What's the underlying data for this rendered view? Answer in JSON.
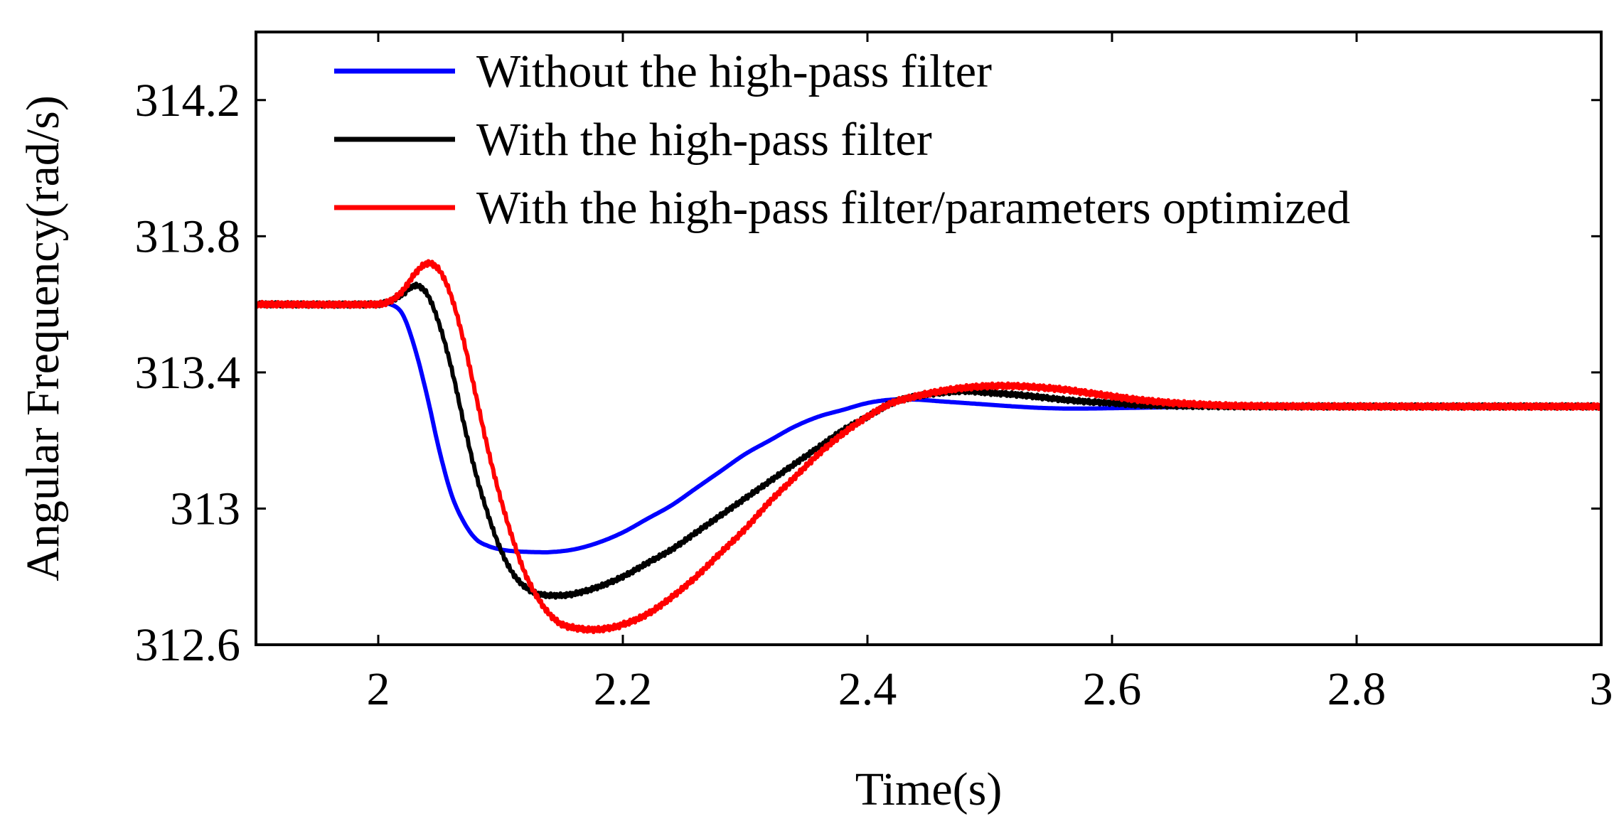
{
  "chart_data": {
    "type": "line",
    "title": "",
    "xlabel": "Time(s)",
    "ylabel": "Angular Frequency(rad/s)",
    "xlim": [
      1.9,
      3.0
    ],
    "ylim": [
      312.6,
      314.4
    ],
    "xticks": [
      2,
      2.2,
      2.4,
      2.6,
      2.8,
      3
    ],
    "xtick_labels": [
      "2",
      "2.2",
      "2.4",
      "2.6",
      "2.8",
      "3"
    ],
    "yticks": [
      312.6,
      313,
      313.4,
      313.8,
      314.2
    ],
    "ytick_labels": [
      "312.6",
      "313",
      "313.4",
      "313.8",
      "314.2"
    ],
    "grid": false,
    "legend_position": "top",
    "series": [
      {
        "name": "Without the high-pass filter",
        "color": "#0000ff",
        "ripple": 0,
        "x": [
          1.9,
          2.0,
          2.01,
          2.02,
          2.03,
          2.04,
          2.05,
          2.06,
          2.07,
          2.08,
          2.09,
          2.1,
          2.11,
          2.12,
          2.13,
          2.14,
          2.16,
          2.18,
          2.2,
          2.22,
          2.24,
          2.26,
          2.28,
          2.3,
          2.32,
          2.34,
          2.36,
          2.38,
          2.4,
          2.42,
          2.44,
          2.46,
          2.48,
          2.5,
          2.52,
          2.54,
          2.56,
          2.58,
          2.6,
          2.65,
          2.7,
          2.8,
          3.0
        ],
        "y": [
          313.6,
          313.6,
          313.6,
          313.57,
          313.47,
          313.33,
          313.17,
          313.04,
          312.96,
          312.91,
          312.89,
          312.88,
          312.875,
          312.873,
          312.872,
          312.872,
          312.88,
          312.9,
          312.93,
          312.97,
          313.01,
          313.06,
          313.11,
          313.16,
          313.2,
          313.24,
          313.27,
          313.29,
          313.31,
          313.32,
          313.32,
          313.315,
          313.31,
          313.305,
          313.3,
          313.296,
          313.294,
          313.294,
          313.295,
          313.298,
          313.3,
          313.3,
          313.3
        ]
      },
      {
        "name": "With the high-pass filter",
        "color": "#000000",
        "ripple": 0.006,
        "x": [
          1.9,
          2.0,
          2.01,
          2.02,
          2.03,
          2.04,
          2.05,
          2.06,
          2.07,
          2.08,
          2.09,
          2.1,
          2.11,
          2.12,
          2.13,
          2.14,
          2.15,
          2.16,
          2.18,
          2.2,
          2.22,
          2.24,
          2.26,
          2.28,
          2.3,
          2.32,
          2.34,
          2.36,
          2.38,
          2.4,
          2.42,
          2.44,
          2.46,
          2.48,
          2.5,
          2.52,
          2.54,
          2.56,
          2.58,
          2.6,
          2.62,
          2.65,
          2.7,
          2.8,
          3.0
        ],
        "y": [
          313.6,
          313.6,
          313.61,
          313.63,
          313.655,
          313.63,
          313.54,
          313.41,
          313.25,
          313.1,
          312.98,
          312.88,
          312.81,
          312.77,
          312.75,
          312.745,
          312.745,
          312.75,
          312.77,
          312.8,
          312.84,
          312.88,
          312.93,
          312.98,
          313.03,
          313.08,
          313.13,
          313.18,
          313.23,
          313.27,
          313.31,
          313.33,
          313.34,
          313.345,
          313.34,
          313.335,
          313.328,
          313.32,
          313.314,
          313.31,
          313.305,
          313.302,
          313.3,
          313.3,
          313.3
        ]
      },
      {
        "name": "With the high-pass filter/parameters optimized",
        "color": "#ff0000",
        "ripple": 0.007,
        "x": [
          1.9,
          2.0,
          2.01,
          2.02,
          2.03,
          2.04,
          2.05,
          2.06,
          2.07,
          2.08,
          2.09,
          2.1,
          2.11,
          2.12,
          2.13,
          2.14,
          2.15,
          2.16,
          2.17,
          2.18,
          2.19,
          2.2,
          2.22,
          2.24,
          2.26,
          2.28,
          2.3,
          2.32,
          2.34,
          2.36,
          2.38,
          2.4,
          2.42,
          2.44,
          2.46,
          2.48,
          2.5,
          2.52,
          2.54,
          2.56,
          2.58,
          2.6,
          2.62,
          2.65,
          2.7,
          2.8,
          3.0
        ],
        "y": [
          313.6,
          313.6,
          313.61,
          313.64,
          313.69,
          313.72,
          313.7,
          313.62,
          313.49,
          313.33,
          313.17,
          313.03,
          312.91,
          312.81,
          312.74,
          312.69,
          312.66,
          312.65,
          312.645,
          312.645,
          312.65,
          312.66,
          312.69,
          312.74,
          312.8,
          312.87,
          312.94,
          313.02,
          313.09,
          313.16,
          313.22,
          313.27,
          313.31,
          313.33,
          313.345,
          313.355,
          313.36,
          313.36,
          313.356,
          313.35,
          313.34,
          313.33,
          313.32,
          313.31,
          313.302,
          313.3,
          313.3
        ]
      }
    ]
  }
}
